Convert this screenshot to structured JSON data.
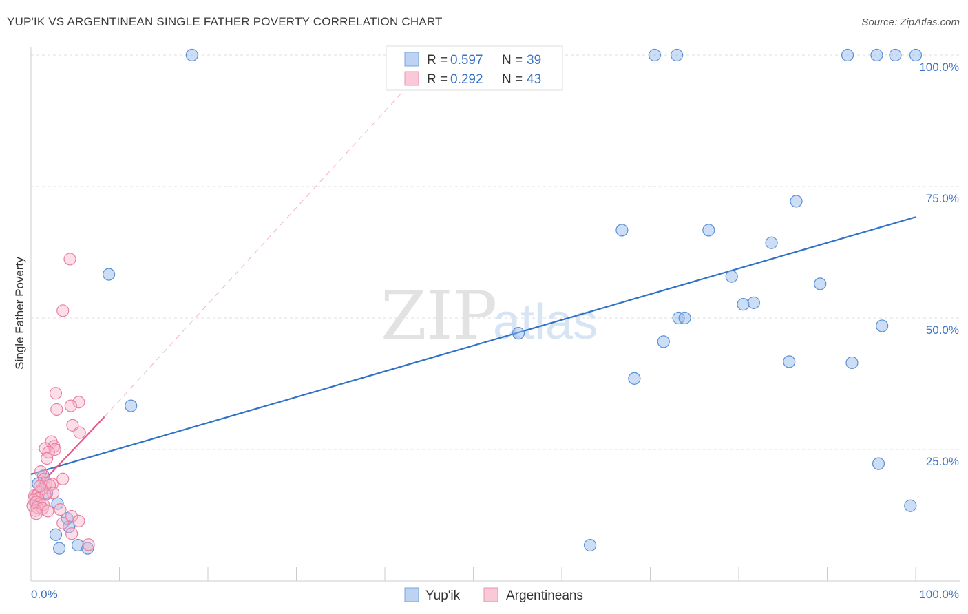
{
  "title": "YUP'IK VS ARGENTINEAN SINGLE FATHER POVERTY CORRELATION CHART",
  "source": "Source: ZipAtlas.com",
  "watermark": {
    "zip": "ZIP",
    "atlas": "atlas"
  },
  "chart_data": {
    "type": "scatter",
    "title": "YUP'IK VS ARGENTINEAN SINGLE FATHER POVERTY CORRELATION CHART",
    "xlabel": "",
    "ylabel": "Single Father Poverty",
    "xlim": [
      0,
      100
    ],
    "ylim": [
      0,
      100
    ],
    "x_tick_labels": [
      "0.0%",
      "100.0%"
    ],
    "y_ticks": [
      25,
      50,
      75,
      100
    ],
    "y_tick_labels": [
      "25.0%",
      "50.0%",
      "75.0%",
      "100.0%"
    ],
    "grid": true,
    "legend": {
      "placement": "top-center",
      "entries": [
        {
          "r_label": "R =",
          "r": "0.597",
          "n_label": "N =",
          "n": "39"
        },
        {
          "r_label": "R =",
          "r": "0.292",
          "n_label": "N =",
          "n": "43"
        }
      ]
    },
    "series": [
      {
        "name": "Yup'ik",
        "color": "#8fb6ea",
        "stroke": "#5b8fd6",
        "line_color": "#2f72c8",
        "trend": {
          "x0": 0,
          "y0": 20.3,
          "x1": 100,
          "y1": 69.2
        },
        "points": [
          [
            18.2,
            100
          ],
          [
            70.5,
            100
          ],
          [
            73.0,
            100
          ],
          [
            92.3,
            100
          ],
          [
            95.6,
            100
          ],
          [
            97.7,
            100
          ],
          [
            100,
            100
          ],
          [
            8.8,
            58.3
          ],
          [
            11.3,
            33.3
          ],
          [
            55.1,
            47.1
          ],
          [
            66.8,
            66.7
          ],
          [
            76.6,
            66.7
          ],
          [
            86.5,
            72.2
          ],
          [
            83.7,
            64.3
          ],
          [
            79.2,
            57.9
          ],
          [
            80.5,
            52.6
          ],
          [
            81.7,
            52.9
          ],
          [
            89.2,
            56.5
          ],
          [
            73.2,
            50.0
          ],
          [
            73.9,
            50.0
          ],
          [
            71.5,
            45.5
          ],
          [
            68.2,
            38.5
          ],
          [
            85.7,
            41.7
          ],
          [
            92.8,
            41.5
          ],
          [
            96.2,
            48.5
          ],
          [
            95.8,
            22.3
          ],
          [
            99.4,
            14.3
          ],
          [
            63.2,
            6.8
          ],
          [
            0.8,
            18.5
          ],
          [
            1.8,
            16.7
          ],
          [
            3.0,
            14.7
          ],
          [
            4.1,
            11.9
          ],
          [
            4.3,
            10.3
          ],
          [
            2.8,
            8.8
          ],
          [
            3.2,
            6.2
          ],
          [
            5.3,
            6.8
          ],
          [
            6.4,
            6.2
          ],
          [
            1.4,
            20.0
          ],
          [
            0.5,
            15.0
          ]
        ]
      },
      {
        "name": "Argentineans",
        "color": "#f6b6ca",
        "stroke": "#ea7fa2",
        "line_color": "#e8578a",
        "trend": {
          "x0": 0,
          "y0": 16.5,
          "x1": 8.3,
          "y1": 31.2
        },
        "trend_ext": {
          "x0": 8.3,
          "y0": 31.2,
          "x1": 42,
          "y1": 93.0
        },
        "points": [
          [
            4.4,
            61.2
          ],
          [
            3.6,
            51.4
          ],
          [
            2.8,
            35.7
          ],
          [
            5.4,
            34.0
          ],
          [
            4.5,
            33.3
          ],
          [
            2.9,
            32.6
          ],
          [
            4.7,
            29.6
          ],
          [
            5.5,
            28.2
          ],
          [
            2.3,
            26.5
          ],
          [
            2.6,
            25.6
          ],
          [
            2.7,
            25.0
          ],
          [
            1.6,
            25.2
          ],
          [
            2.0,
            24.5
          ],
          [
            1.8,
            23.3
          ],
          [
            1.1,
            20.8
          ],
          [
            1.5,
            19.4
          ],
          [
            3.6,
            19.4
          ],
          [
            1.7,
            18.6
          ],
          [
            2.4,
            18.4
          ],
          [
            2.1,
            18.2
          ],
          [
            1.2,
            17.4
          ],
          [
            0.9,
            16.9
          ],
          [
            2.5,
            16.7
          ],
          [
            1.6,
            16.4
          ],
          [
            0.4,
            16.2
          ],
          [
            0.8,
            15.7
          ],
          [
            0.3,
            15.4
          ],
          [
            0.6,
            15.0
          ],
          [
            1.0,
            14.7
          ],
          [
            1.4,
            14.5
          ],
          [
            0.2,
            14.3
          ],
          [
            0.7,
            14.0
          ],
          [
            1.3,
            13.8
          ],
          [
            0.5,
            13.4
          ],
          [
            3.3,
            13.6
          ],
          [
            1.9,
            13.3
          ],
          [
            0.6,
            12.8
          ],
          [
            4.6,
            12.3
          ],
          [
            3.6,
            11.0
          ],
          [
            5.4,
            11.4
          ],
          [
            4.6,
            9.0
          ],
          [
            6.5,
            6.9
          ],
          [
            1.0,
            18.0
          ]
        ]
      }
    ]
  }
}
